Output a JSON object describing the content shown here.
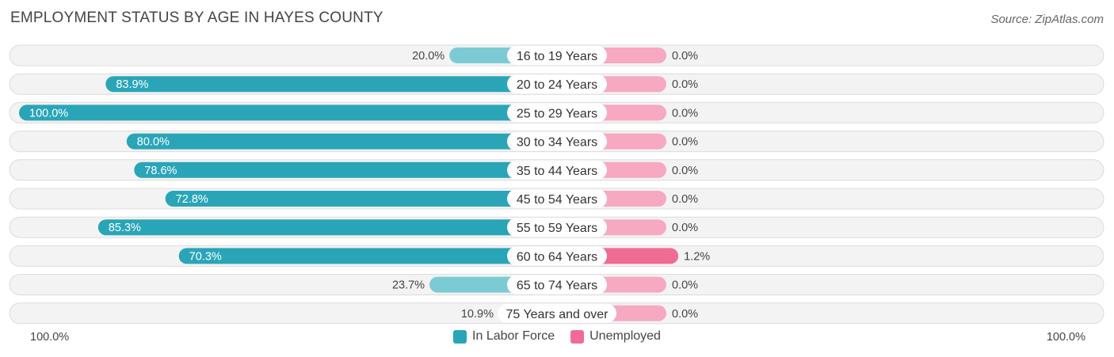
{
  "title": "EMPLOYMENT STATUS BY AGE IN HAYES COUNTY",
  "source": "Source: ZipAtlas.com",
  "axis": {
    "left_label": "100.0%",
    "right_label": "100.0%"
  },
  "colors": {
    "labor_strong": "#2aa5b8",
    "labor_light": "#7ccbd4",
    "unemp_strong": "#f06c95",
    "unemp_light": "#f6a9c1"
  },
  "legend": [
    {
      "label": "In Labor Force",
      "color": "#2aa5b8"
    },
    {
      "label": "Unemployed",
      "color": "#f06c95"
    }
  ],
  "chart_data": {
    "type": "bar",
    "orientation": "horizontal-diverging",
    "title": "EMPLOYMENT STATUS BY AGE IN HAYES COUNTY",
    "categories": [
      "16 to 19 Years",
      "20 to 24 Years",
      "25 to 29 Years",
      "30 to 34 Years",
      "35 to 44 Years",
      "45 to 54 Years",
      "55 to 59 Years",
      "60 to 64 Years",
      "65 to 74 Years",
      "75 Years and over"
    ],
    "series": [
      {
        "name": "In Labor Force",
        "values": [
          20.0,
          83.9,
          100.0,
          80.0,
          78.6,
          72.8,
          85.3,
          70.3,
          23.7,
          10.9
        ],
        "labels": [
          "20.0%",
          "83.9%",
          "100.0%",
          "80.0%",
          "78.6%",
          "72.8%",
          "85.3%",
          "70.3%",
          "23.7%",
          "10.9%"
        ]
      },
      {
        "name": "Unemployed",
        "values": [
          0.0,
          0.0,
          0.0,
          0.0,
          0.0,
          0.0,
          0.0,
          1.2,
          0.0,
          0.0
        ],
        "labels": [
          "0.0%",
          "0.0%",
          "0.0%",
          "0.0%",
          "0.0%",
          "0.0%",
          "0.0%",
          "1.2%",
          "0.0%",
          "0.0%"
        ]
      }
    ],
    "xlim": [
      -100,
      100
    ],
    "legend_position": "bottom-center"
  }
}
